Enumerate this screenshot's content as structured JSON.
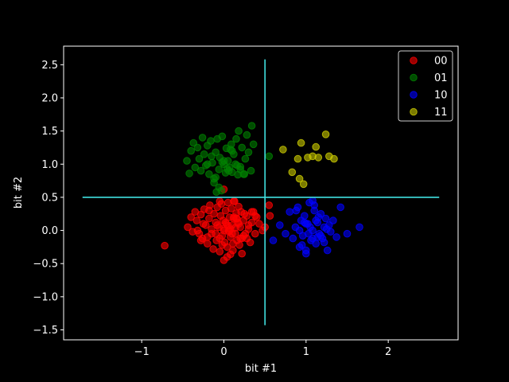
{
  "chart_data": {
    "type": "scatter",
    "xlabel": "bit #1",
    "ylabel": "bit #2",
    "xlim": [
      -1.95,
      2.85
    ],
    "ylim": [
      -1.65,
      2.78
    ],
    "xticks": [
      -1,
      0,
      1,
      2
    ],
    "xtick_labels": [
      "−1",
      "0",
      "1",
      "2"
    ],
    "yticks": [
      -1.5,
      -1.0,
      -0.5,
      0.0,
      0.5,
      1.0,
      1.5,
      2.0,
      2.5
    ],
    "ytick_labels": [
      "−1.5",
      "−1.0",
      "−0.5",
      "0.0",
      "0.5",
      "1.0",
      "1.5",
      "2.0",
      "2.5"
    ],
    "grid": false,
    "legend": "top-right",
    "background": "#000000",
    "decision_lines": [
      {
        "orientation": "vertical",
        "x": 0.5,
        "y_range": [
          -1.43,
          2.58
        ],
        "color": "#40e0e0"
      },
      {
        "orientation": "horizontal",
        "y": 0.5,
        "x_range": [
          -1.72,
          2.62
        ],
        "color": "#40e0e0"
      }
    ],
    "series": [
      {
        "name": "00",
        "color": "#ff0000",
        "x": [
          -0.72,
          -0.44,
          -0.4,
          -0.38,
          -0.35,
          -0.33,
          -0.3,
          -0.28,
          -0.26,
          -0.24,
          -0.22,
          -0.2,
          -0.18,
          -0.17,
          -0.15,
          -0.13,
          -0.12,
          -0.1,
          -0.09,
          -0.08,
          -0.06,
          -0.05,
          -0.04,
          -0.03,
          -0.02,
          -0.01,
          0.0,
          0.01,
          0.02,
          0.03,
          0.04,
          0.05,
          0.06,
          0.07,
          0.08,
          0.09,
          0.1,
          0.11,
          0.12,
          0.13,
          0.14,
          0.15,
          0.16,
          0.17,
          0.18,
          0.19,
          0.2,
          0.21,
          0.22,
          0.24,
          0.26,
          0.28,
          0.3,
          0.32,
          0.34,
          0.36,
          0.38,
          0.4,
          0.43,
          0.47,
          0.55,
          0.56,
          -0.25,
          -0.15,
          -0.05,
          0.05,
          0.12,
          0.22,
          0.3,
          -0.32,
          -0.18,
          0.0,
          0.1,
          0.18,
          0.28,
          -0.1,
          0.02,
          0.08,
          0.15,
          0.25,
          -0.02,
          0.06,
          0.14,
          0.2,
          0.34,
          -0.2,
          -0.08,
          0.04,
          0.11,
          0.24,
          0.38,
          0.5,
          -0.28,
          0.16,
          0.0,
          0.08,
          0.0,
          -0.05,
          0.12
        ],
        "y": [
          -0.23,
          0.05,
          0.2,
          -0.02,
          0.28,
          0.15,
          -0.05,
          0.24,
          -0.12,
          0.32,
          0.08,
          -0.2,
          0.18,
          0.38,
          0.02,
          -0.28,
          0.25,
          0.12,
          -0.15,
          0.35,
          0.05,
          -0.32,
          0.22,
          0.4,
          -0.08,
          0.15,
          0.03,
          -0.18,
          0.3,
          0.1,
          -0.25,
          0.42,
          0.0,
          0.2,
          -0.1,
          0.33,
          0.08,
          -0.3,
          0.18,
          0.44,
          -0.05,
          0.26,
          -0.15,
          0.12,
          0.36,
          -0.22,
          0.05,
          0.28,
          -0.35,
          0.15,
          -0.05,
          0.22,
          0.08,
          -0.18,
          0.12,
          0.28,
          -0.05,
          0.2,
          0.1,
          0.0,
          0.38,
          0.22,
          0.1,
          -0.05,
          -0.12,
          0.07,
          0.2,
          -0.12,
          0.02,
          0.0,
          0.3,
          0.0,
          -0.05,
          0.1,
          -0.12,
          -0.05,
          0.12,
          0.02,
          0.18,
          0.25,
          -0.22,
          -0.02,
          0.04,
          -0.12,
          0.28,
          -0.1,
          0.08,
          -0.4,
          -0.2,
          -0.08,
          0.22,
          0.05,
          -0.15,
          0.18,
          -0.45,
          -0.36,
          0.62,
          0.44,
          0.44
        ]
      },
      {
        "name": "01",
        "color": "#008000",
        "x": [
          -0.45,
          -0.42,
          -0.4,
          -0.37,
          -0.35,
          -0.32,
          -0.3,
          -0.28,
          -0.26,
          -0.24,
          -0.22,
          -0.2,
          -0.18,
          -0.16,
          -0.14,
          -0.12,
          -0.1,
          -0.09,
          -0.08,
          -0.06,
          -0.05,
          -0.03,
          -0.02,
          0.0,
          0.02,
          0.03,
          0.05,
          0.07,
          0.09,
          0.1,
          0.12,
          0.14,
          0.15,
          0.17,
          0.18,
          0.2,
          0.22,
          0.24,
          0.26,
          0.28,
          0.3,
          0.33,
          0.36,
          0.55,
          -0.12,
          -0.06,
          0.04,
          0.1,
          0.2,
          -0.2,
          -0.1,
          0.0,
          0.08,
          0.16,
          0.25,
          0.34,
          -0.15,
          -0.02,
          0.06
        ],
        "y": [
          1.05,
          0.86,
          1.2,
          1.32,
          0.95,
          1.25,
          1.08,
          0.9,
          1.4,
          1.15,
          0.98,
          1.28,
          0.85,
          1.35,
          1.02,
          0.72,
          1.18,
          0.58,
          1.38,
          0.92,
          1.1,
          0.6,
          1.42,
          1.0,
          0.87,
          1.24,
          1.05,
          0.95,
          1.3,
          0.88,
          1.15,
          1.0,
          1.38,
          0.84,
          1.5,
          0.96,
          1.25,
          0.85,
          1.08,
          1.44,
          1.18,
          0.9,
          1.3,
          1.12,
          0.78,
          0.65,
          0.93,
          1.2,
          0.92,
          1.0,
          0.8,
          1.05,
          1.22,
          0.98,
          0.85,
          1.58,
          1.12,
          1.03,
          0.9
        ]
      },
      {
        "name": "10",
        "color": "#0000ff",
        "x": [
          0.6,
          0.68,
          0.75,
          0.8,
          0.84,
          0.87,
          0.9,
          0.92,
          0.94,
          0.96,
          0.98,
          1.0,
          1.02,
          1.04,
          1.06,
          1.08,
          1.1,
          1.12,
          1.14,
          1.16,
          1.18,
          1.2,
          1.22,
          1.24,
          1.26,
          1.28,
          1.3,
          1.33,
          1.37,
          1.42,
          1.5,
          1.65,
          0.92,
          1.0,
          1.08,
          1.15,
          1.22,
          0.95,
          1.05,
          1.12,
          1.18,
          0.88,
          1.0,
          1.1,
          1.25,
          0.98,
          1.03,
          1.08,
          1.14
        ],
        "y": [
          -0.15,
          0.08,
          -0.05,
          0.28,
          -0.12,
          0.05,
          0.35,
          -0.25,
          0.15,
          -0.08,
          0.22,
          -0.3,
          0.1,
          0.42,
          -0.15,
          0.0,
          0.3,
          -0.2,
          0.12,
          -0.05,
          0.25,
          -0.12,
          0.05,
          0.18,
          -0.3,
          0.08,
          -0.02,
          0.15,
          -0.1,
          0.35,
          -0.05,
          0.05,
          0.0,
          0.1,
          -0.12,
          0.2,
          -0.18,
          -0.22,
          0.05,
          0.15,
          -0.08,
          0.3,
          -0.35,
          0.38,
          0.02,
          0.12,
          -0.05,
          0.45,
          -0.1
        ]
      },
      {
        "name": "11",
        "color": "#cccc00",
        "x": [
          0.72,
          0.83,
          0.9,
          0.92,
          0.94,
          0.97,
          1.02,
          1.08,
          1.12,
          1.15,
          1.24,
          1.28,
          1.34
        ],
        "y": [
          1.22,
          0.88,
          1.08,
          0.78,
          1.32,
          0.7,
          1.1,
          1.12,
          1.26,
          1.1,
          1.45,
          1.12,
          1.08
        ]
      }
    ]
  }
}
